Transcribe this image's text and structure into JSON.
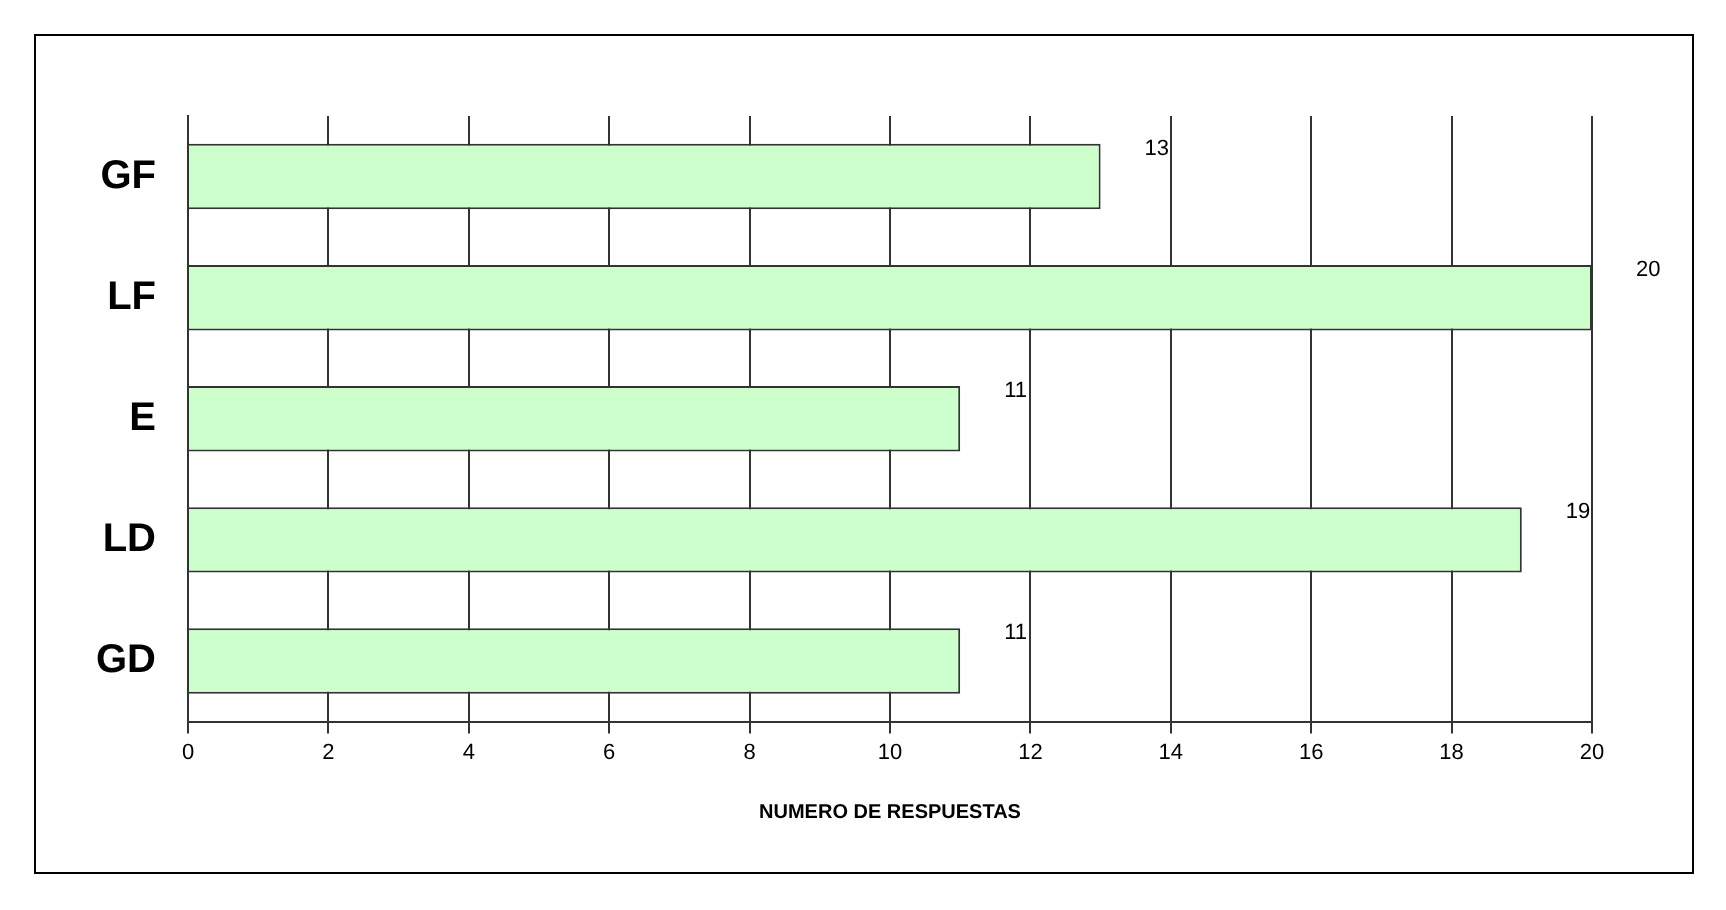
{
  "chart_data": {
    "type": "bar",
    "orientation": "horizontal",
    "categories": [
      "GF",
      "LF",
      "E",
      "LD",
      "GD"
    ],
    "values": [
      13,
      20,
      11,
      19,
      11
    ],
    "color": "#ccffcc",
    "xlabel": "NUMERO DE RESPUESTAS",
    "xlim": [
      0,
      20
    ],
    "xticks": [
      0,
      2,
      4,
      6,
      8,
      10,
      12,
      14,
      16,
      18,
      20
    ],
    "grid": "x",
    "data_labels": true
  }
}
